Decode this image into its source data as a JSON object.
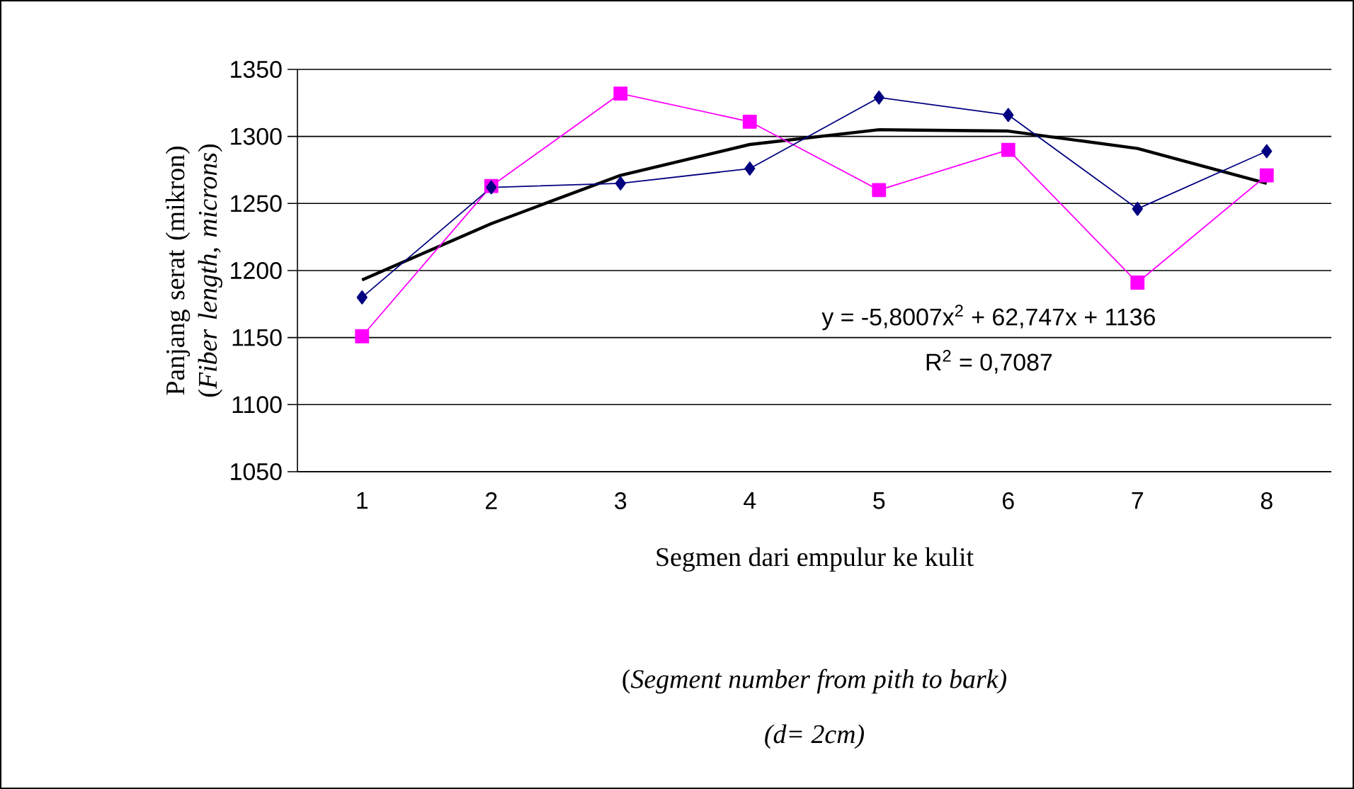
{
  "chart_data": {
    "type": "line",
    "ylabel": "Panjang serat (mikron) (*Fiber length, microns*)",
    "xlabel": "Segmen dari empulur ke kulit",
    "annotations": [
      "y = -5,8007x$^{2}$ + 62,747x + 1136",
      "R$^{2}$ = 0,7087",
      "(*Segment number from pith to bark)*",
      "(d= 2cm)"
    ],
    "categories": [
      "1",
      "2",
      "3",
      "4",
      "5",
      "6",
      "7",
      "8"
    ],
    "series": [
      {
        "color": "#000080",
        "marker": "diamond",
        "values": [
          1180,
          1262,
          1265,
          1276,
          1329,
          1316,
          1246,
          1289
        ]
      },
      {
        "color": "#ff00ff",
        "marker": "square",
        "values": [
          1151,
          1263,
          1332,
          1311,
          1260,
          1290,
          1191,
          1271
        ]
      },
      {
        "color": "#000000",
        "marker": "none",
        "values": [
          1193,
          1235,
          1271,
          1294,
          1305,
          1304,
          1291,
          1265
        ]
      }
    ],
    "ylim": [
      1050,
      1350
    ],
    "yticks": [
      1050,
      1100,
      1150,
      1200,
      1250,
      1300,
      1350
    ],
    "grid": "y"
  }
}
